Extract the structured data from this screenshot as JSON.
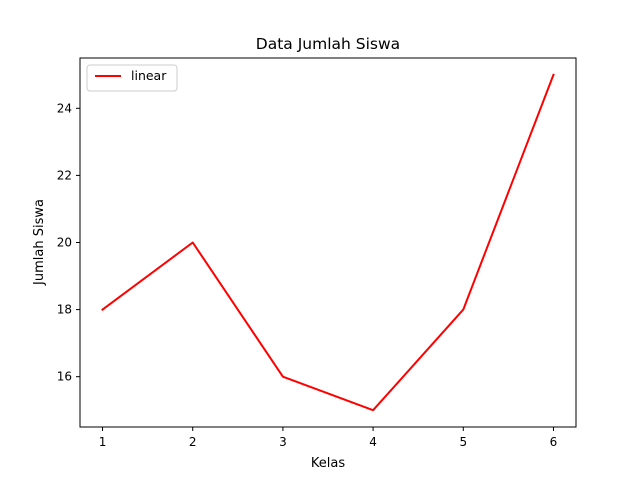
{
  "chart_data": {
    "type": "line",
    "title": "Data Jumlah Siswa",
    "xlabel": "Kelas",
    "ylabel": "Jumlah Siswa",
    "x": [
      1,
      2,
      3,
      4,
      5,
      6
    ],
    "xlim": [
      0.75,
      6.25
    ],
    "ylim": [
      14.5,
      25.5
    ],
    "xticks": [
      1,
      2,
      3,
      4,
      5,
      6
    ],
    "yticks": [
      16,
      18,
      20,
      22,
      24
    ],
    "grid": false,
    "legend_position": "top-left",
    "series": [
      {
        "name": "linear",
        "color": "#ff0000",
        "values": [
          18,
          20,
          16,
          15,
          18,
          25
        ]
      }
    ]
  }
}
